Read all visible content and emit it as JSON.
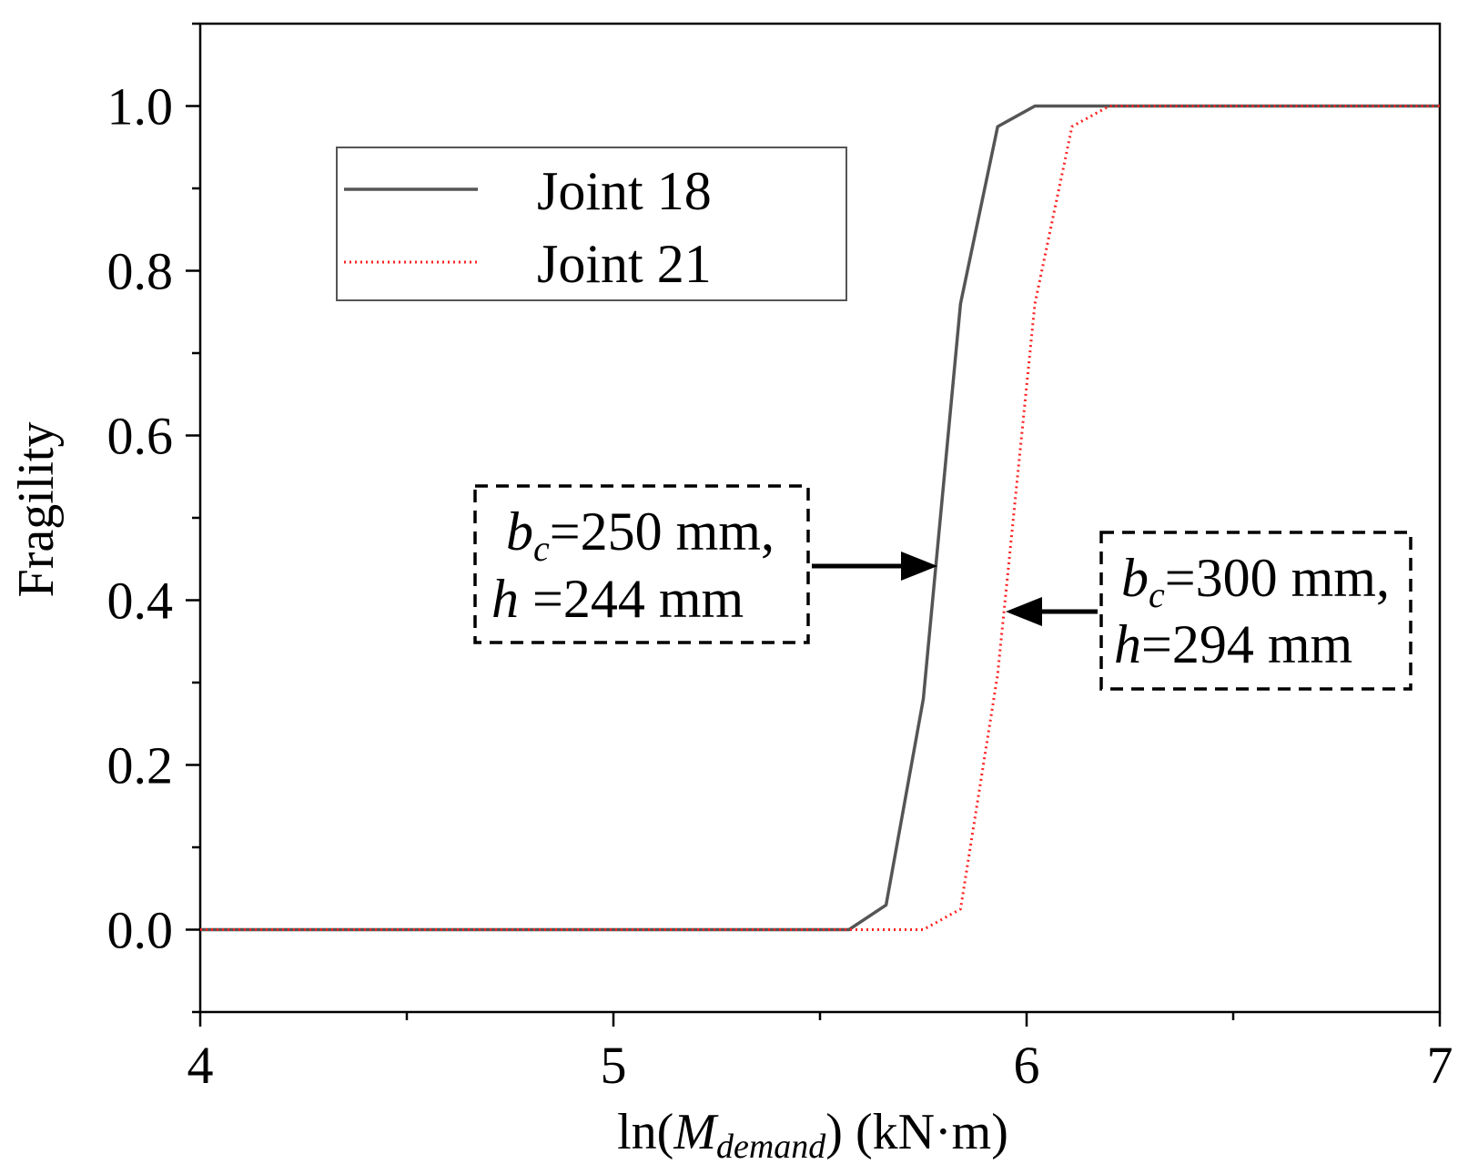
{
  "chart_data": {
    "type": "line",
    "xlabel": {
      "prefix": "ln(",
      "var": "M",
      "sub": "demand",
      "suffix": ") (kN·m)"
    },
    "ylabel": "Fragility",
    "xlim": [
      4,
      7
    ],
    "ylim": [
      -0.1,
      1.1
    ],
    "xticks": [
      4,
      5,
      6,
      7
    ],
    "xtick_labels": [
      "4",
      "5",
      "6",
      "7"
    ],
    "yticks": [
      0.0,
      0.2,
      0.4,
      0.6,
      0.8,
      1.0
    ],
    "ytick_labels": [
      "0.0",
      "0.2",
      "0.4",
      "0.6",
      "0.8",
      "1.0"
    ],
    "grid": false,
    "legend_position": "top-left",
    "series": [
      {
        "name": "Joint 18",
        "color": "#555555",
        "style": "solid",
        "x": [
          4.0,
          5.57,
          5.66,
          5.75,
          5.84,
          5.93,
          6.02,
          7.0
        ],
        "y": [
          0.0,
          0.0,
          0.03,
          0.28,
          0.76,
          0.975,
          1.0,
          1.0
        ]
      },
      {
        "name": "Joint 21",
        "color": "#ff2222",
        "style": "dotted",
        "x": [
          4.0,
          5.75,
          5.84,
          5.93,
          6.02,
          6.11,
          6.2,
          7.0
        ],
        "y": [
          0.0,
          0.0,
          0.025,
          0.31,
          0.76,
          0.975,
          1.0,
          1.0
        ]
      }
    ],
    "annotations": [
      {
        "line1": {
          "var": "b",
          "sub": "c",
          "text": "=250 mm,"
        },
        "line2": {
          "var": "h",
          "text": " =244 mm"
        },
        "arrow_to": [
          5.78,
          0.44
        ],
        "arrow_direction": "right"
      },
      {
        "line1": {
          "var": "b",
          "sub": "c",
          "text": "=300 mm,"
        },
        "line2": {
          "var": "h",
          "text": "=294 mm"
        },
        "arrow_to": [
          5.93,
          0.39
        ],
        "arrow_direction": "left"
      }
    ]
  }
}
